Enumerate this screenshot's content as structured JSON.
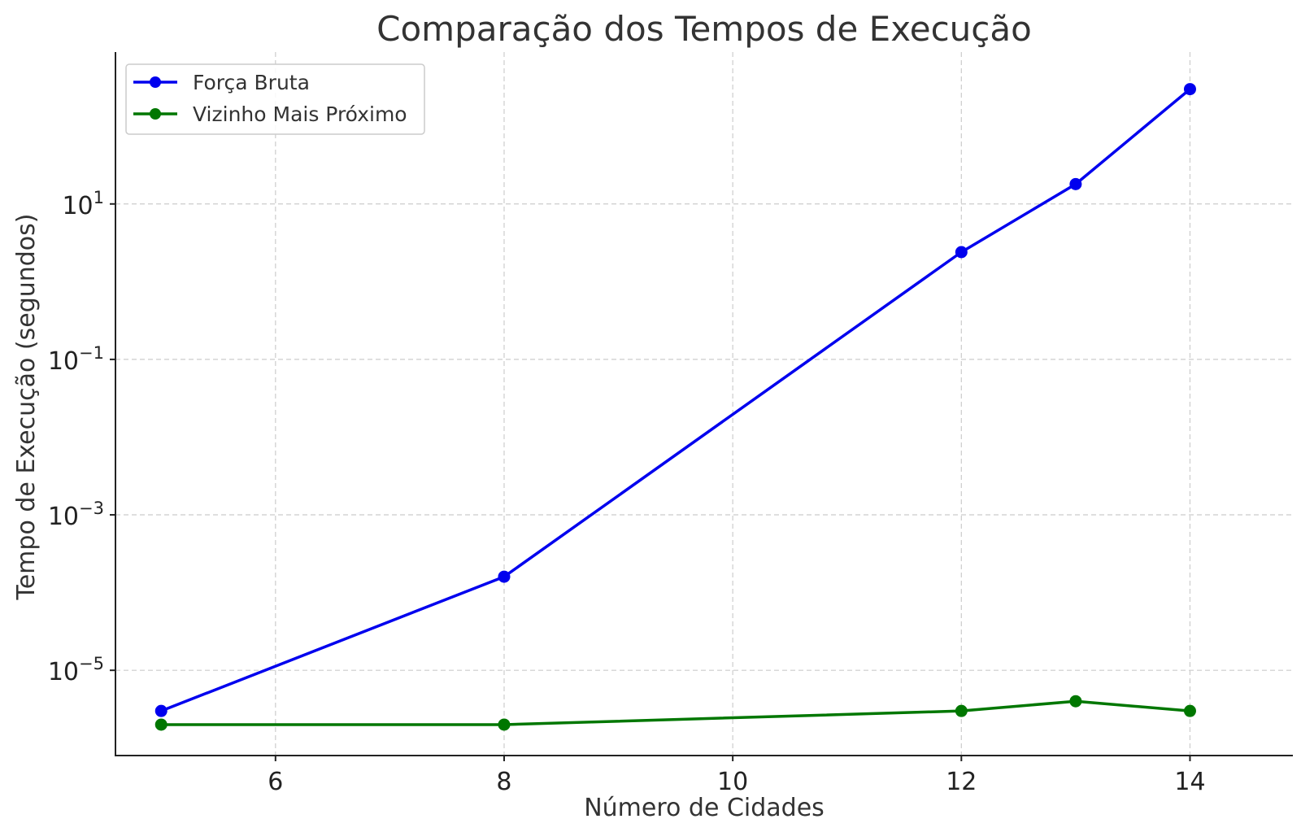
{
  "chart_data": {
    "type": "line",
    "title": "Comparação dos Tempos de Execução",
    "xlabel": "Número de Cidades",
    "ylabel": "Tempo de Execução (segundos)",
    "yscale": "log",
    "xlim": [
      4.6,
      14.9
    ],
    "ylim": [
      8e-07,
      900
    ],
    "xticks": [
      6,
      8,
      10,
      12,
      14
    ],
    "yticks": [
      {
        "value": 10,
        "base": "10",
        "exp": "1"
      },
      {
        "value": 0.1,
        "base": "10",
        "exp": "−1"
      },
      {
        "value": 0.001,
        "base": "10",
        "exp": "−3"
      },
      {
        "value": 1e-05,
        "base": "10",
        "exp": "−5"
      }
    ],
    "grid": true,
    "legend_position": "top-left",
    "series": [
      {
        "name": "Força Bruta",
        "color": "#0000ee",
        "x": [
          5,
          8,
          12,
          13,
          14
        ],
        "y": [
          3e-06,
          0.00016,
          2.4,
          18,
          300
        ]
      },
      {
        "name": "Vizinho Mais Próximo",
        "color": "#007700",
        "x": [
          5,
          8,
          12,
          13,
          14
        ],
        "y": [
          2e-06,
          2e-06,
          3e-06,
          4e-06,
          3e-06
        ]
      }
    ]
  }
}
